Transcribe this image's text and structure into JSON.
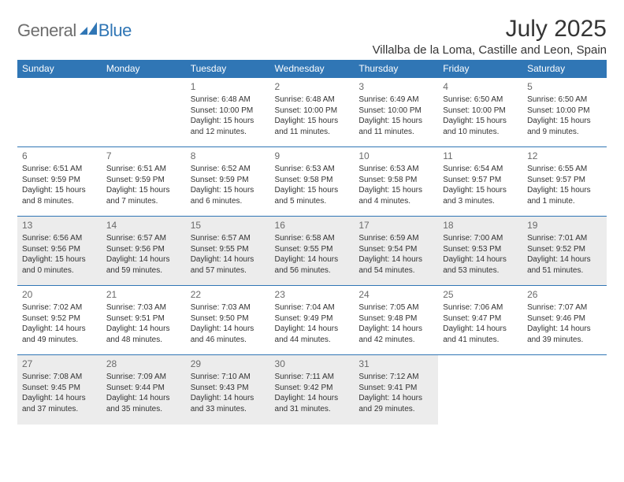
{
  "logo": {
    "general": "General",
    "blue": "Blue"
  },
  "title": "July 2025",
  "location": "Villalba de la Loma, Castille and Leon, Spain",
  "colors": {
    "accent": "#3076b5",
    "header_text": "#ffffff",
    "body_text": "#333333",
    "muted_text": "#6a6a6a",
    "shade_bg": "#ececec",
    "background": "#ffffff"
  },
  "weekdays": [
    "Sunday",
    "Monday",
    "Tuesday",
    "Wednesday",
    "Thursday",
    "Friday",
    "Saturday"
  ],
  "layout": {
    "first_weekday_index": 2,
    "days_in_month": 31,
    "shaded_rows": [
      2,
      4
    ]
  },
  "days": {
    "1": {
      "sunrise": "6:48 AM",
      "sunset": "10:00 PM",
      "daylight": "15 hours and 12 minutes."
    },
    "2": {
      "sunrise": "6:48 AM",
      "sunset": "10:00 PM",
      "daylight": "15 hours and 11 minutes."
    },
    "3": {
      "sunrise": "6:49 AM",
      "sunset": "10:00 PM",
      "daylight": "15 hours and 11 minutes."
    },
    "4": {
      "sunrise": "6:50 AM",
      "sunset": "10:00 PM",
      "daylight": "15 hours and 10 minutes."
    },
    "5": {
      "sunrise": "6:50 AM",
      "sunset": "10:00 PM",
      "daylight": "15 hours and 9 minutes."
    },
    "6": {
      "sunrise": "6:51 AM",
      "sunset": "9:59 PM",
      "daylight": "15 hours and 8 minutes."
    },
    "7": {
      "sunrise": "6:51 AM",
      "sunset": "9:59 PM",
      "daylight": "15 hours and 7 minutes."
    },
    "8": {
      "sunrise": "6:52 AM",
      "sunset": "9:59 PM",
      "daylight": "15 hours and 6 minutes."
    },
    "9": {
      "sunrise": "6:53 AM",
      "sunset": "9:58 PM",
      "daylight": "15 hours and 5 minutes."
    },
    "10": {
      "sunrise": "6:53 AM",
      "sunset": "9:58 PM",
      "daylight": "15 hours and 4 minutes."
    },
    "11": {
      "sunrise": "6:54 AM",
      "sunset": "9:57 PM",
      "daylight": "15 hours and 3 minutes."
    },
    "12": {
      "sunrise": "6:55 AM",
      "sunset": "9:57 PM",
      "daylight": "15 hours and 1 minute."
    },
    "13": {
      "sunrise": "6:56 AM",
      "sunset": "9:56 PM",
      "daylight": "15 hours and 0 minutes."
    },
    "14": {
      "sunrise": "6:57 AM",
      "sunset": "9:56 PM",
      "daylight": "14 hours and 59 minutes."
    },
    "15": {
      "sunrise": "6:57 AM",
      "sunset": "9:55 PM",
      "daylight": "14 hours and 57 minutes."
    },
    "16": {
      "sunrise": "6:58 AM",
      "sunset": "9:55 PM",
      "daylight": "14 hours and 56 minutes."
    },
    "17": {
      "sunrise": "6:59 AM",
      "sunset": "9:54 PM",
      "daylight": "14 hours and 54 minutes."
    },
    "18": {
      "sunrise": "7:00 AM",
      "sunset": "9:53 PM",
      "daylight": "14 hours and 53 minutes."
    },
    "19": {
      "sunrise": "7:01 AM",
      "sunset": "9:52 PM",
      "daylight": "14 hours and 51 minutes."
    },
    "20": {
      "sunrise": "7:02 AM",
      "sunset": "9:52 PM",
      "daylight": "14 hours and 49 minutes."
    },
    "21": {
      "sunrise": "7:03 AM",
      "sunset": "9:51 PM",
      "daylight": "14 hours and 48 minutes."
    },
    "22": {
      "sunrise": "7:03 AM",
      "sunset": "9:50 PM",
      "daylight": "14 hours and 46 minutes."
    },
    "23": {
      "sunrise": "7:04 AM",
      "sunset": "9:49 PM",
      "daylight": "14 hours and 44 minutes."
    },
    "24": {
      "sunrise": "7:05 AM",
      "sunset": "9:48 PM",
      "daylight": "14 hours and 42 minutes."
    },
    "25": {
      "sunrise": "7:06 AM",
      "sunset": "9:47 PM",
      "daylight": "14 hours and 41 minutes."
    },
    "26": {
      "sunrise": "7:07 AM",
      "sunset": "9:46 PM",
      "daylight": "14 hours and 39 minutes."
    },
    "27": {
      "sunrise": "7:08 AM",
      "sunset": "9:45 PM",
      "daylight": "14 hours and 37 minutes."
    },
    "28": {
      "sunrise": "7:09 AM",
      "sunset": "9:44 PM",
      "daylight": "14 hours and 35 minutes."
    },
    "29": {
      "sunrise": "7:10 AM",
      "sunset": "9:43 PM",
      "daylight": "14 hours and 33 minutes."
    },
    "30": {
      "sunrise": "7:11 AM",
      "sunset": "9:42 PM",
      "daylight": "14 hours and 31 minutes."
    },
    "31": {
      "sunrise": "7:12 AM",
      "sunset": "9:41 PM",
      "daylight": "14 hours and 29 minutes."
    }
  },
  "labels": {
    "sunrise": "Sunrise: ",
    "sunset": "Sunset: ",
    "daylight": "Daylight: "
  }
}
